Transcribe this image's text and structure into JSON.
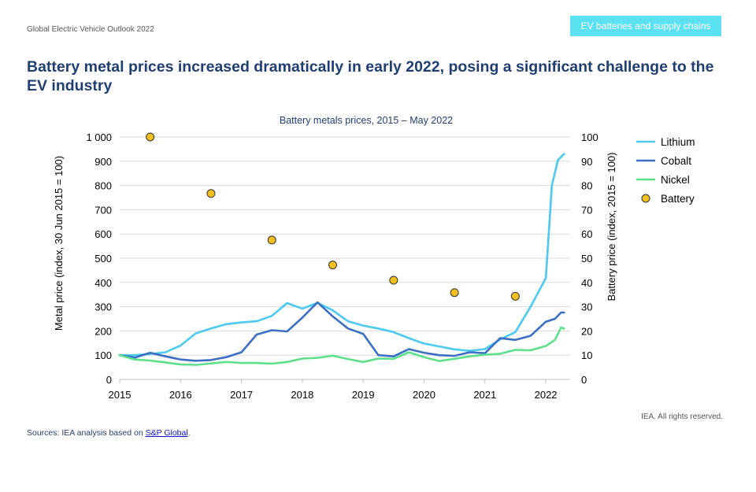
{
  "header": {
    "report_label": "Global Electric Vehicle Outlook 2022",
    "section_tag": "EV batteries and supply chains",
    "headline": "Battery metal prices increased dramatically in early 2022, posing a significant challenge to the EV industry"
  },
  "footer": {
    "rights": "IEA. All rights reserved.",
    "sources_prefix": "Sources: IEA analysis based on ",
    "sources_link": "S&P Global",
    "sources_suffix": "."
  },
  "colors": {
    "lithium": "#4cc9f0",
    "cobalt": "#3a6fc4",
    "nickel": "#5ee08a",
    "battery": "#f2c01e"
  },
  "chart_data": {
    "type": "line",
    "title": "Battery metals prices, 2015 – May 2022",
    "ylabel": "Metal price (index, 30 Jun 2015 = 100)",
    "y2label": "Battery price (index, 2015 = 100)",
    "xlim": [
      2015,
      2022.4
    ],
    "ylim": [
      0,
      1000
    ],
    "y2lim": [
      0,
      100
    ],
    "x_ticks": [
      2015,
      2016,
      2017,
      2018,
      2019,
      2020,
      2021,
      2022
    ],
    "x_tick_labels": [
      "2015",
      "2016",
      "2017",
      "2018",
      "2019",
      "2020",
      "2021",
      "2022"
    ],
    "y_ticks": [
      0,
      100,
      200,
      300,
      400,
      500,
      600,
      700,
      800,
      900,
      1000
    ],
    "y_tick_labels": [
      "0",
      "100",
      "200",
      "300",
      "400",
      "500",
      "600",
      "700",
      "800",
      "900",
      "1 000"
    ],
    "y2_ticks": [
      0,
      10,
      20,
      30,
      40,
      50,
      60,
      70,
      80,
      90,
      100
    ],
    "y2_tick_labels": [
      "0",
      "10",
      "20",
      "30",
      "40",
      "50",
      "60",
      "70",
      "80",
      "90",
      "100"
    ],
    "legend_position": "right",
    "series": [
      {
        "name": "Lithium",
        "key": "lithium",
        "axis": "left",
        "kind": "line",
        "x": [
          2015.0,
          2015.25,
          2015.5,
          2015.75,
          2016.0,
          2016.25,
          2016.5,
          2016.75,
          2017.0,
          2017.25,
          2017.5,
          2017.75,
          2018.0,
          2018.25,
          2018.5,
          2018.75,
          2019.0,
          2019.25,
          2019.5,
          2019.75,
          2020.0,
          2020.25,
          2020.5,
          2020.75,
          2021.0,
          2021.25,
          2021.5,
          2021.75,
          2022.0,
          2022.1,
          2022.2,
          2022.3
        ],
        "values": [
          100,
          100,
          105,
          112,
          140,
          190,
          210,
          228,
          235,
          240,
          262,
          315,
          292,
          316,
          285,
          240,
          222,
          210,
          195,
          170,
          148,
          136,
          124,
          118,
          125,
          165,
          195,
          300,
          418,
          800,
          905,
          930
        ]
      },
      {
        "name": "Cobalt",
        "key": "cobalt",
        "axis": "left",
        "kind": "line",
        "x": [
          2015.0,
          2015.25,
          2015.5,
          2015.75,
          2016.0,
          2016.25,
          2016.5,
          2016.75,
          2017.0,
          2017.25,
          2017.5,
          2017.75,
          2018.0,
          2018.25,
          2018.5,
          2018.75,
          2019.0,
          2019.25,
          2019.5,
          2019.75,
          2020.0,
          2020.25,
          2020.5,
          2020.75,
          2021.0,
          2021.25,
          2021.5,
          2021.75,
          2022.0,
          2022.15,
          2022.25,
          2022.3
        ],
        "values": [
          100,
          90,
          110,
          95,
          82,
          77,
          80,
          92,
          112,
          185,
          203,
          198,
          255,
          318,
          260,
          210,
          188,
          100,
          95,
          125,
          110,
          100,
          97,
          112,
          108,
          170,
          163,
          180,
          238,
          250,
          276,
          276
        ]
      },
      {
        "name": "Nickel",
        "key": "nickel",
        "axis": "left",
        "kind": "line",
        "x": [
          2015.0,
          2015.25,
          2015.5,
          2015.75,
          2016.0,
          2016.25,
          2016.5,
          2016.75,
          2017.0,
          2017.25,
          2017.5,
          2017.75,
          2018.0,
          2018.25,
          2018.5,
          2018.75,
          2019.0,
          2019.25,
          2019.5,
          2019.75,
          2020.0,
          2020.25,
          2020.5,
          2020.75,
          2021.0,
          2021.25,
          2021.5,
          2021.75,
          2022.0,
          2022.15,
          2022.25,
          2022.3
        ],
        "values": [
          100,
          82,
          78,
          70,
          62,
          60,
          66,
          72,
          68,
          68,
          65,
          72,
          86,
          89,
          98,
          84,
          72,
          86,
          85,
          112,
          92,
          76,
          85,
          95,
          102,
          106,
          122,
          120,
          138,
          163,
          214,
          210
        ]
      },
      {
        "name": "Battery",
        "key": "battery",
        "axis": "right",
        "kind": "scatter",
        "x": [
          2015.5,
          2016.5,
          2017.5,
          2018.5,
          2019.5,
          2020.5,
          2021.5
        ],
        "values": [
          100,
          76.7,
          57.5,
          47.2,
          40.9,
          35.8,
          34.3
        ]
      }
    ]
  }
}
